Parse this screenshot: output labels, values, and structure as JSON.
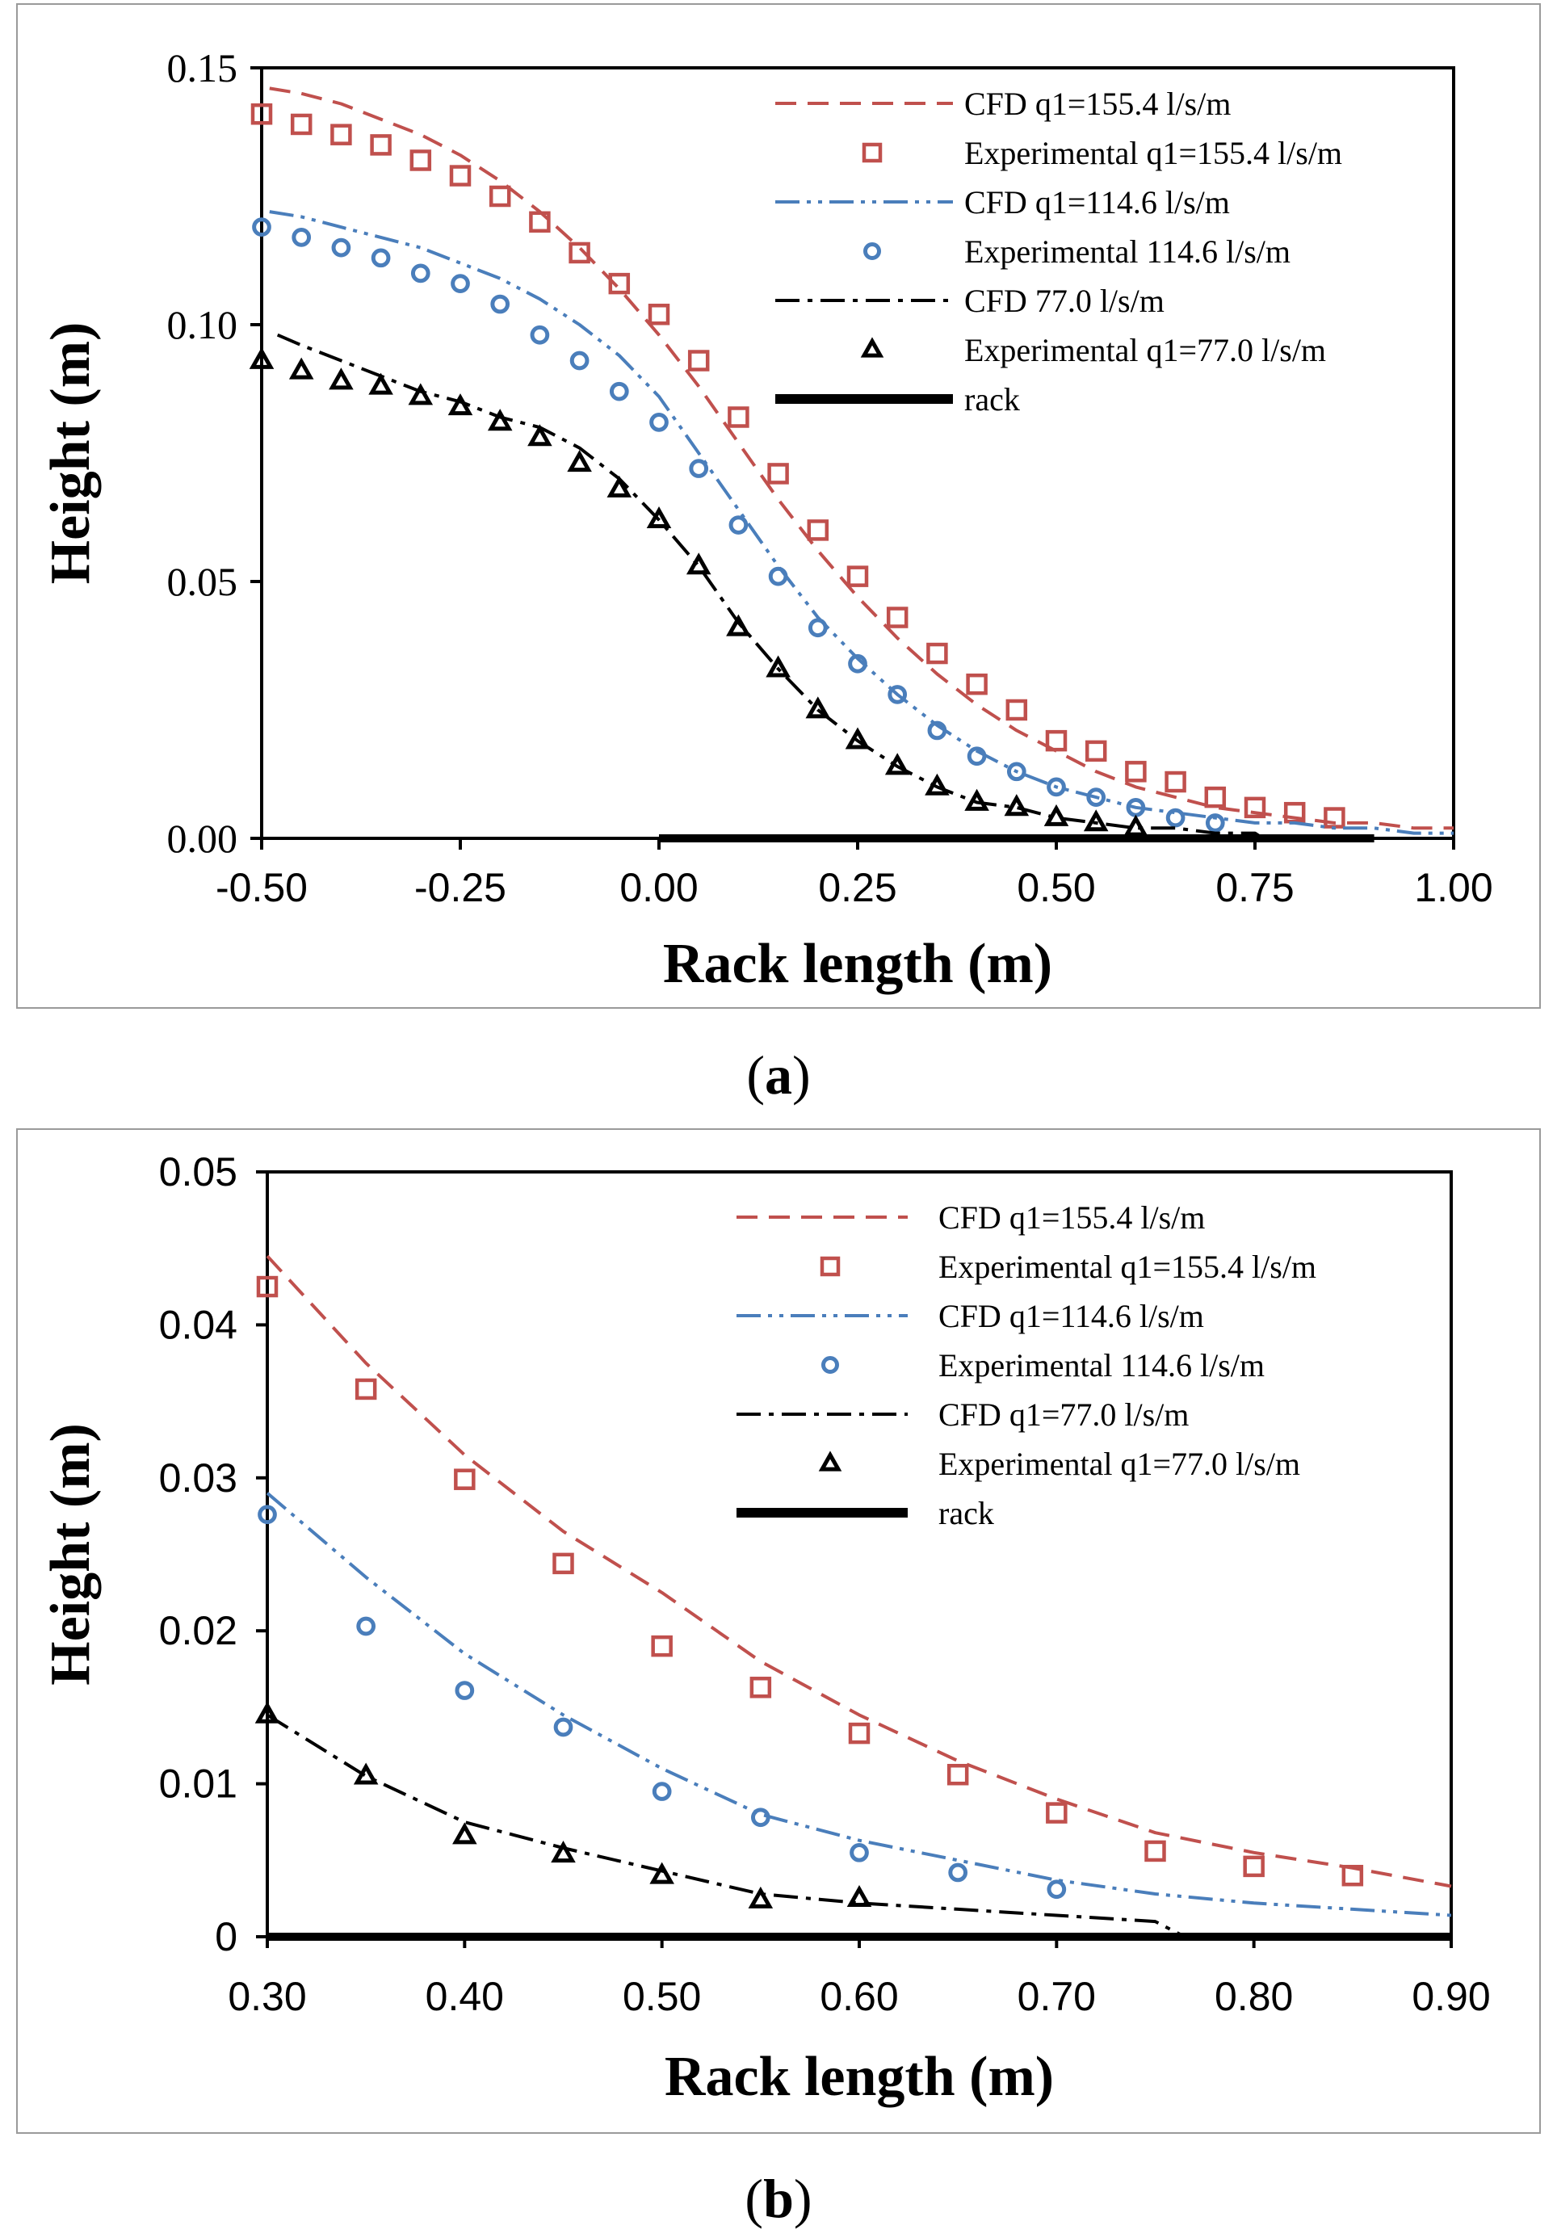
{
  "captions": {
    "a": "a",
    "b": "b"
  },
  "colors": {
    "red": "#c0504d",
    "blue": "#4a7ebb",
    "black": "#000000",
    "frame": "#9a9a9a"
  },
  "chart_data": [
    {
      "id": "a",
      "type": "line",
      "title": "",
      "xlabel": "Rack length (m)",
      "ylabel": "Height (m)",
      "xlim": [
        -0.5,
        1.0
      ],
      "ylim": [
        0.0,
        0.15
      ],
      "xticks": [
        -0.5,
        -0.25,
        0.0,
        0.25,
        0.5,
        0.75,
        1.0
      ],
      "xtick_labels": [
        "-0.50",
        "-0.25",
        "0.00",
        "0.25",
        "0.50",
        "0.75",
        "1.00"
      ],
      "yticks": [
        0.0,
        0.05,
        0.1,
        0.15
      ],
      "ytick_labels": [
        "0.00",
        "0.05",
        "0.10",
        "0.15"
      ],
      "legend_position": "top-right",
      "series": [
        {
          "name": "CFD q1=155.4 l/s/m",
          "kind": "line",
          "style": "dash",
          "color": "#c0504d",
          "x": [
            -0.49,
            -0.45,
            -0.4,
            -0.35,
            -0.3,
            -0.25,
            -0.2,
            -0.15,
            -0.1,
            -0.05,
            0.0,
            0.05,
            0.1,
            0.15,
            0.2,
            0.25,
            0.3,
            0.35,
            0.4,
            0.45,
            0.5,
            0.55,
            0.6,
            0.65,
            0.7,
            0.75,
            0.8,
            0.85,
            0.9,
            0.95,
            1.0
          ],
          "y": [
            0.146,
            0.145,
            0.143,
            0.14,
            0.137,
            0.133,
            0.128,
            0.122,
            0.115,
            0.107,
            0.098,
            0.088,
            0.077,
            0.066,
            0.056,
            0.047,
            0.039,
            0.032,
            0.026,
            0.021,
            0.017,
            0.013,
            0.01,
            0.008,
            0.006,
            0.005,
            0.004,
            0.003,
            0.003,
            0.002,
            0.002
          ]
        },
        {
          "name": "Experimental q1=155.4 l/s/m",
          "kind": "marker",
          "marker": "square",
          "color": "#c0504d",
          "x": [
            -0.5,
            -0.45,
            -0.4,
            -0.35,
            -0.3,
            -0.25,
            -0.2,
            -0.15,
            -0.1,
            -0.05,
            0.0,
            0.05,
            0.1,
            0.15,
            0.2,
            0.25,
            0.3,
            0.35,
            0.4,
            0.45,
            0.5,
            0.55,
            0.6,
            0.65,
            0.7,
            0.75,
            0.8,
            0.85
          ],
          "y": [
            0.141,
            0.139,
            0.137,
            0.135,
            0.132,
            0.129,
            0.125,
            0.12,
            0.114,
            0.108,
            0.102,
            0.093,
            0.082,
            0.071,
            0.06,
            0.051,
            0.043,
            0.036,
            0.03,
            0.025,
            0.019,
            0.017,
            0.013,
            0.011,
            0.008,
            0.006,
            0.005,
            0.004
          ]
        },
        {
          "name": "CFD q1=114.6 l/s/m",
          "kind": "line",
          "style": "dashdotdot",
          "color": "#4a7ebb",
          "x": [
            -0.49,
            -0.45,
            -0.4,
            -0.35,
            -0.3,
            -0.25,
            -0.2,
            -0.15,
            -0.1,
            -0.05,
            0.0,
            0.05,
            0.1,
            0.15,
            0.2,
            0.25,
            0.3,
            0.35,
            0.4,
            0.45,
            0.5,
            0.55,
            0.6,
            0.65,
            0.7,
            0.75,
            0.8,
            0.85,
            0.9,
            0.95,
            1.0
          ],
          "y": [
            0.122,
            0.121,
            0.119,
            0.117,
            0.115,
            0.112,
            0.109,
            0.105,
            0.1,
            0.094,
            0.086,
            0.075,
            0.064,
            0.053,
            0.043,
            0.035,
            0.028,
            0.022,
            0.017,
            0.013,
            0.01,
            0.008,
            0.006,
            0.005,
            0.004,
            0.003,
            0.003,
            0.002,
            0.002,
            0.001,
            0.001
          ]
        },
        {
          "name": "Experimental 114.6 l/s/m",
          "kind": "marker",
          "marker": "circle",
          "color": "#4a7ebb",
          "x": [
            -0.5,
            -0.45,
            -0.4,
            -0.35,
            -0.3,
            -0.25,
            -0.2,
            -0.15,
            -0.1,
            -0.05,
            0.0,
            0.05,
            0.1,
            0.15,
            0.2,
            0.25,
            0.3,
            0.35,
            0.4,
            0.45,
            0.5,
            0.55,
            0.6,
            0.65,
            0.7
          ],
          "y": [
            0.119,
            0.117,
            0.115,
            0.113,
            0.11,
            0.108,
            0.104,
            0.098,
            0.093,
            0.087,
            0.081,
            0.072,
            0.061,
            0.051,
            0.041,
            0.034,
            0.028,
            0.021,
            0.016,
            0.013,
            0.01,
            0.008,
            0.006,
            0.004,
            0.003
          ]
        },
        {
          "name": "CFD 77.0 l/s/m",
          "kind": "line",
          "style": "dashdot",
          "color": "#000000",
          "x": [
            -0.48,
            -0.45,
            -0.4,
            -0.35,
            -0.3,
            -0.25,
            -0.2,
            -0.15,
            -0.1,
            -0.05,
            0.0,
            0.05,
            0.1,
            0.15,
            0.2,
            0.25,
            0.3,
            0.35,
            0.4,
            0.45,
            0.5,
            0.55,
            0.6,
            0.65,
            0.7,
            0.75,
            0.76
          ],
          "y": [
            0.098,
            0.096,
            0.093,
            0.09,
            0.087,
            0.085,
            0.082,
            0.08,
            0.076,
            0.07,
            0.062,
            0.053,
            0.042,
            0.033,
            0.025,
            0.019,
            0.014,
            0.01,
            0.007,
            0.006,
            0.004,
            0.003,
            0.002,
            0.002,
            0.001,
            0.001,
            0.0
          ]
        },
        {
          "name": "Experimental q1=77.0 l/s/m",
          "kind": "marker",
          "marker": "triangle",
          "color": "#000000",
          "x": [
            -0.5,
            -0.45,
            -0.4,
            -0.35,
            -0.3,
            -0.25,
            -0.2,
            -0.15,
            -0.1,
            -0.05,
            0.0,
            0.05,
            0.1,
            0.15,
            0.2,
            0.25,
            0.3,
            0.35,
            0.4,
            0.45,
            0.5,
            0.55,
            0.6
          ],
          "y": [
            0.093,
            0.091,
            0.089,
            0.088,
            0.086,
            0.084,
            0.081,
            0.078,
            0.073,
            0.068,
            0.062,
            0.053,
            0.041,
            0.033,
            0.025,
            0.019,
            0.014,
            0.01,
            0.007,
            0.006,
            0.004,
            0.003,
            0.002
          ]
        },
        {
          "name": "rack",
          "kind": "line",
          "style": "thick",
          "color": "#000000",
          "x": [
            0.0,
            0.9
          ],
          "y": [
            0.0,
            0.0
          ]
        }
      ]
    },
    {
      "id": "b",
      "type": "line",
      "title": "",
      "xlabel": "Rack length (m)",
      "ylabel": "Height (m)",
      "xlim": [
        0.3,
        0.9
      ],
      "ylim": [
        0.0,
        0.05
      ],
      "xticks": [
        0.3,
        0.4,
        0.5,
        0.6,
        0.7,
        0.8,
        0.9
      ],
      "xtick_labels": [
        "0.30",
        "0.40",
        "0.50",
        "0.60",
        "0.70",
        "0.80",
        "0.90"
      ],
      "yticks": [
        0.0,
        0.01,
        0.02,
        0.03,
        0.04,
        0.05
      ],
      "ytick_labels": [
        "0",
        "0.01",
        "0.02",
        "0.03",
        "0.04",
        "0.05"
      ],
      "legend_position": "top-right",
      "series": [
        {
          "name": "CFD q1=155.4 l/s/m",
          "kind": "line",
          "style": "dash",
          "color": "#c0504d",
          "x": [
            0.3,
            0.35,
            0.4,
            0.45,
            0.5,
            0.55,
            0.6,
            0.65,
            0.7,
            0.75,
            0.8,
            0.85,
            0.9
          ],
          "y": [
            0.0445,
            0.0375,
            0.0315,
            0.0265,
            0.0225,
            0.018,
            0.0145,
            0.0115,
            0.009,
            0.0068,
            0.0055,
            0.0045,
            0.0033
          ]
        },
        {
          "name": "Experimental q1=155.4 l/s/m",
          "kind": "marker",
          "marker": "square",
          "color": "#c0504d",
          "x": [
            0.3,
            0.35,
            0.4,
            0.45,
            0.5,
            0.55,
            0.6,
            0.65,
            0.7,
            0.75,
            0.8,
            0.85
          ],
          "y": [
            0.0425,
            0.0358,
            0.0299,
            0.0244,
            0.019,
            0.0163,
            0.0133,
            0.0106,
            0.0081,
            0.0056,
            0.0046,
            0.004
          ]
        },
        {
          "name": "CFD q1=114.6 l/s/m",
          "kind": "line",
          "style": "dashdotdot",
          "color": "#4a7ebb",
          "x": [
            0.3,
            0.35,
            0.4,
            0.45,
            0.5,
            0.55,
            0.6,
            0.65,
            0.7,
            0.75,
            0.8,
            0.85,
            0.9
          ],
          "y": [
            0.029,
            0.0235,
            0.0185,
            0.0145,
            0.011,
            0.008,
            0.0063,
            0.005,
            0.0037,
            0.0028,
            0.0022,
            0.0018,
            0.0014
          ]
        },
        {
          "name": "Experimental 114.6 l/s/m",
          "kind": "marker",
          "marker": "circle",
          "color": "#4a7ebb",
          "x": [
            0.3,
            0.35,
            0.4,
            0.45,
            0.5,
            0.55,
            0.6,
            0.65,
            0.7
          ],
          "y": [
            0.0276,
            0.0203,
            0.0161,
            0.0137,
            0.0095,
            0.0078,
            0.0055,
            0.0042,
            0.0031
          ]
        },
        {
          "name": "CFD q1=77.0 l/s/m",
          "kind": "line",
          "style": "dashdot",
          "color": "#000000",
          "x": [
            0.3,
            0.35,
            0.4,
            0.45,
            0.5,
            0.55,
            0.6,
            0.65,
            0.7,
            0.75,
            0.765
          ],
          "y": [
            0.0145,
            0.0105,
            0.0075,
            0.0058,
            0.0043,
            0.0028,
            0.0022,
            0.0018,
            0.0014,
            0.001,
            0.0
          ]
        },
        {
          "name": "Experimental q1=77.0 l/s/m",
          "kind": "marker",
          "marker": "triangle",
          "color": "#000000",
          "x": [
            0.3,
            0.35,
            0.4,
            0.45,
            0.5,
            0.55,
            0.6
          ],
          "y": [
            0.0145,
            0.0105,
            0.0066,
            0.0054,
            0.004,
            0.0024,
            0.0025
          ]
        },
        {
          "name": "rack",
          "kind": "line",
          "style": "thick",
          "color": "#000000",
          "x": [
            0.3,
            0.9
          ],
          "y": [
            0.0,
            0.0
          ]
        }
      ]
    }
  ]
}
